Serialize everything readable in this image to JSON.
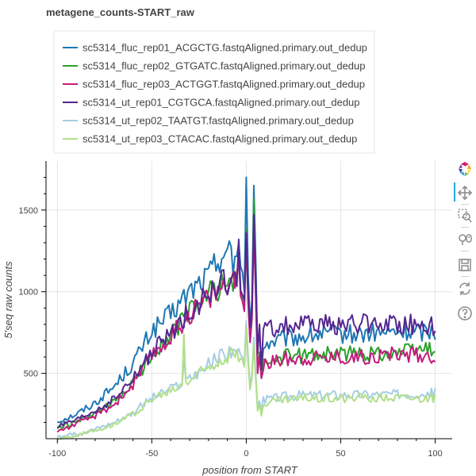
{
  "chart_data": {
    "type": "line",
    "title": "metagene_counts-START_raw",
    "xlabel": "position from START",
    "ylabel": "5'seq raw counts",
    "xlim": [
      -106,
      109
    ],
    "ylim": [
      100,
      1800
    ],
    "x_ticks": [
      -100,
      -50,
      0,
      50,
      100
    ],
    "y_ticks": [
      500,
      1000,
      1500
    ],
    "grid": true,
    "legend_position": "top-left outside",
    "x_start": -100,
    "series": [
      {
        "name": "sc5314_fluc_rep01_ACGCTG.fastqAligned.primary.out_dedup",
        "color": "#1f77b4",
        "anchors": [
          [
            -100,
            205
          ],
          [
            -90,
            250
          ],
          [
            -80,
            320
          ],
          [
            -70,
            420
          ],
          [
            -60,
            560
          ],
          [
            -50,
            760
          ],
          [
            -40,
            860
          ],
          [
            -30,
            1000
          ],
          [
            -20,
            1100
          ],
          [
            -12,
            1250
          ],
          [
            -5,
            1220
          ],
          [
            -2,
            1120
          ],
          [
            -1,
            1000
          ],
          [
            0,
            1700
          ],
          [
            1,
            1100
          ],
          [
            2,
            800
          ],
          [
            3,
            950
          ],
          [
            4,
            1650
          ],
          [
            5,
            1200
          ],
          [
            6,
            900
          ],
          [
            7,
            780
          ],
          [
            8,
            700
          ],
          [
            10,
            680
          ],
          [
            20,
            710
          ],
          [
            40,
            740
          ],
          [
            60,
            740
          ],
          [
            80,
            750
          ],
          [
            100,
            760
          ]
        ],
        "spikes": [
          [
            -7,
            1100
          ],
          [
            -4,
            1300
          ],
          [
            0,
            1700
          ],
          [
            4,
            1650
          ],
          [
            6,
            640
          ],
          [
            8,
            500
          ],
          [
            48,
            770
          ]
        ]
      },
      {
        "name": "sc5314_fluc_rep02_GTGATC.fastqAligned.primary.out_dedup",
        "color": "#2ca02c",
        "anchors": [
          [
            -100,
            165
          ],
          [
            -90,
            200
          ],
          [
            -80,
            250
          ],
          [
            -70,
            320
          ],
          [
            -60,
            440
          ],
          [
            -50,
            620
          ],
          [
            -40,
            730
          ],
          [
            -30,
            880
          ],
          [
            -20,
            980
          ],
          [
            -12,
            1050
          ],
          [
            -5,
            1050
          ],
          [
            -2,
            950
          ],
          [
            -1,
            900
          ],
          [
            0,
            1380
          ],
          [
            1,
            950
          ],
          [
            2,
            700
          ],
          [
            3,
            850
          ],
          [
            4,
            1400
          ],
          [
            5,
            1000
          ],
          [
            6,
            750
          ],
          [
            7,
            630
          ],
          [
            8,
            560
          ],
          [
            10,
            570
          ],
          [
            20,
            600
          ],
          [
            40,
            620
          ],
          [
            60,
            620
          ],
          [
            80,
            630
          ],
          [
            100,
            660
          ]
        ],
        "spikes": [
          [
            -4,
            1250
          ],
          [
            0,
            1380
          ],
          [
            4,
            1570
          ],
          [
            6,
            520
          ],
          [
            8,
            470
          ]
        ]
      },
      {
        "name": "sc5314_fluc_rep03_ACTGGT.fastqAligned.primary.out_dedup",
        "color": "#c51b7d",
        "anchors": [
          [
            -100,
            145
          ],
          [
            -90,
            190
          ],
          [
            -80,
            240
          ],
          [
            -70,
            310
          ],
          [
            -60,
            430
          ],
          [
            -50,
            610
          ],
          [
            -40,
            720
          ],
          [
            -30,
            870
          ],
          [
            -20,
            960
          ],
          [
            -12,
            1040
          ],
          [
            -5,
            1040
          ],
          [
            -2,
            940
          ],
          [
            -1,
            880
          ],
          [
            0,
            1350
          ],
          [
            1,
            930
          ],
          [
            2,
            690
          ],
          [
            3,
            830
          ],
          [
            4,
            1360
          ],
          [
            5,
            980
          ],
          [
            6,
            730
          ],
          [
            7,
            610
          ],
          [
            8,
            540
          ],
          [
            10,
            560
          ],
          [
            20,
            590
          ],
          [
            40,
            600
          ],
          [
            60,
            600
          ],
          [
            80,
            620
          ],
          [
            100,
            610
          ]
        ],
        "spikes": [
          [
            -4,
            1200
          ],
          [
            0,
            1350
          ],
          [
            4,
            1380
          ],
          [
            6,
            500
          ],
          [
            8,
            470
          ],
          [
            100,
            570
          ]
        ]
      },
      {
        "name": "sc5314_ut_rep01_CGTGCA.fastqAligned.primary.out_dedup",
        "color": "#54278f",
        "anchors": [
          [
            -100,
            175
          ],
          [
            -90,
            210
          ],
          [
            -80,
            270
          ],
          [
            -70,
            340
          ],
          [
            -60,
            460
          ],
          [
            -50,
            630
          ],
          [
            -40,
            740
          ],
          [
            -30,
            880
          ],
          [
            -20,
            980
          ],
          [
            -12,
            1060
          ],
          [
            -5,
            1060
          ],
          [
            -2,
            980
          ],
          [
            -1,
            950
          ],
          [
            0,
            1360
          ],
          [
            1,
            1000
          ],
          [
            2,
            780
          ],
          [
            3,
            900
          ],
          [
            4,
            1470
          ],
          [
            5,
            1100
          ],
          [
            6,
            900
          ],
          [
            7,
            800
          ],
          [
            8,
            760
          ],
          [
            10,
            760
          ],
          [
            20,
            790
          ],
          [
            40,
            800
          ],
          [
            60,
            800
          ],
          [
            80,
            810
          ],
          [
            100,
            780
          ]
        ],
        "spikes": [
          [
            -4,
            1320
          ],
          [
            0,
            1360
          ],
          [
            4,
            1470
          ],
          [
            6,
            620
          ],
          [
            8,
            520
          ],
          [
            100,
            760
          ]
        ]
      },
      {
        "name": "sc5314_ut_rep02_TAATGT.fastqAligned.primary.out_dedup",
        "color": "#a6cee3",
        "anchors": [
          [
            -100,
            110
          ],
          [
            -90,
            130
          ],
          [
            -80,
            160
          ],
          [
            -70,
            200
          ],
          [
            -60,
            260
          ],
          [
            -50,
            350
          ],
          [
            -40,
            400
          ],
          [
            -30,
            470
          ],
          [
            -20,
            550
          ],
          [
            -12,
            620
          ],
          [
            -5,
            640
          ],
          [
            -2,
            600
          ],
          [
            -1,
            560
          ],
          [
            0,
            820
          ],
          [
            1,
            600
          ],
          [
            2,
            420
          ],
          [
            3,
            500
          ],
          [
            4,
            720
          ],
          [
            5,
            500
          ],
          [
            6,
            380
          ],
          [
            7,
            330
          ],
          [
            8,
            320
          ],
          [
            10,
            340
          ],
          [
            20,
            360
          ],
          [
            40,
            370
          ],
          [
            60,
            370
          ],
          [
            80,
            375
          ],
          [
            100,
            380
          ]
        ],
        "spikes": [
          [
            0,
            820
          ],
          [
            4,
            720
          ],
          [
            6,
            300
          ],
          [
            8,
            270
          ],
          [
            -33,
            580
          ]
        ]
      },
      {
        "name": "sc5314_ut_rep03_CTACAC.fastqAligned.primary.out_dedup",
        "color": "#b2df8a",
        "anchors": [
          [
            -100,
            95
          ],
          [
            -90,
            120
          ],
          [
            -80,
            150
          ],
          [
            -70,
            190
          ],
          [
            -60,
            250
          ],
          [
            -50,
            340
          ],
          [
            -40,
            390
          ],
          [
            -30,
            460
          ],
          [
            -20,
            540
          ],
          [
            -12,
            600
          ],
          [
            -5,
            620
          ],
          [
            -2,
            580
          ],
          [
            -1,
            540
          ],
          [
            0,
            780
          ],
          [
            1,
            560
          ],
          [
            2,
            400
          ],
          [
            3,
            470
          ],
          [
            4,
            680
          ],
          [
            5,
            470
          ],
          [
            6,
            360
          ],
          [
            7,
            310
          ],
          [
            8,
            300
          ],
          [
            10,
            320
          ],
          [
            20,
            340
          ],
          [
            40,
            350
          ],
          [
            60,
            350
          ],
          [
            80,
            355
          ],
          [
            100,
            350
          ]
        ],
        "spikes": [
          [
            -33,
            740
          ],
          [
            0,
            780
          ],
          [
            4,
            680
          ],
          [
            6,
            270
          ],
          [
            8,
            240
          ]
        ]
      }
    ]
  },
  "toolbar": {
    "tools": [
      {
        "name": "bokeh-logo"
      },
      {
        "name": "pan-tool"
      },
      {
        "name": "box-zoom-tool"
      },
      {
        "name": "wheel-zoom-tool"
      },
      {
        "name": "save-tool"
      },
      {
        "name": "reset-tool"
      },
      {
        "name": "help-tool"
      }
    ],
    "accent_color": "#26aae1"
  }
}
